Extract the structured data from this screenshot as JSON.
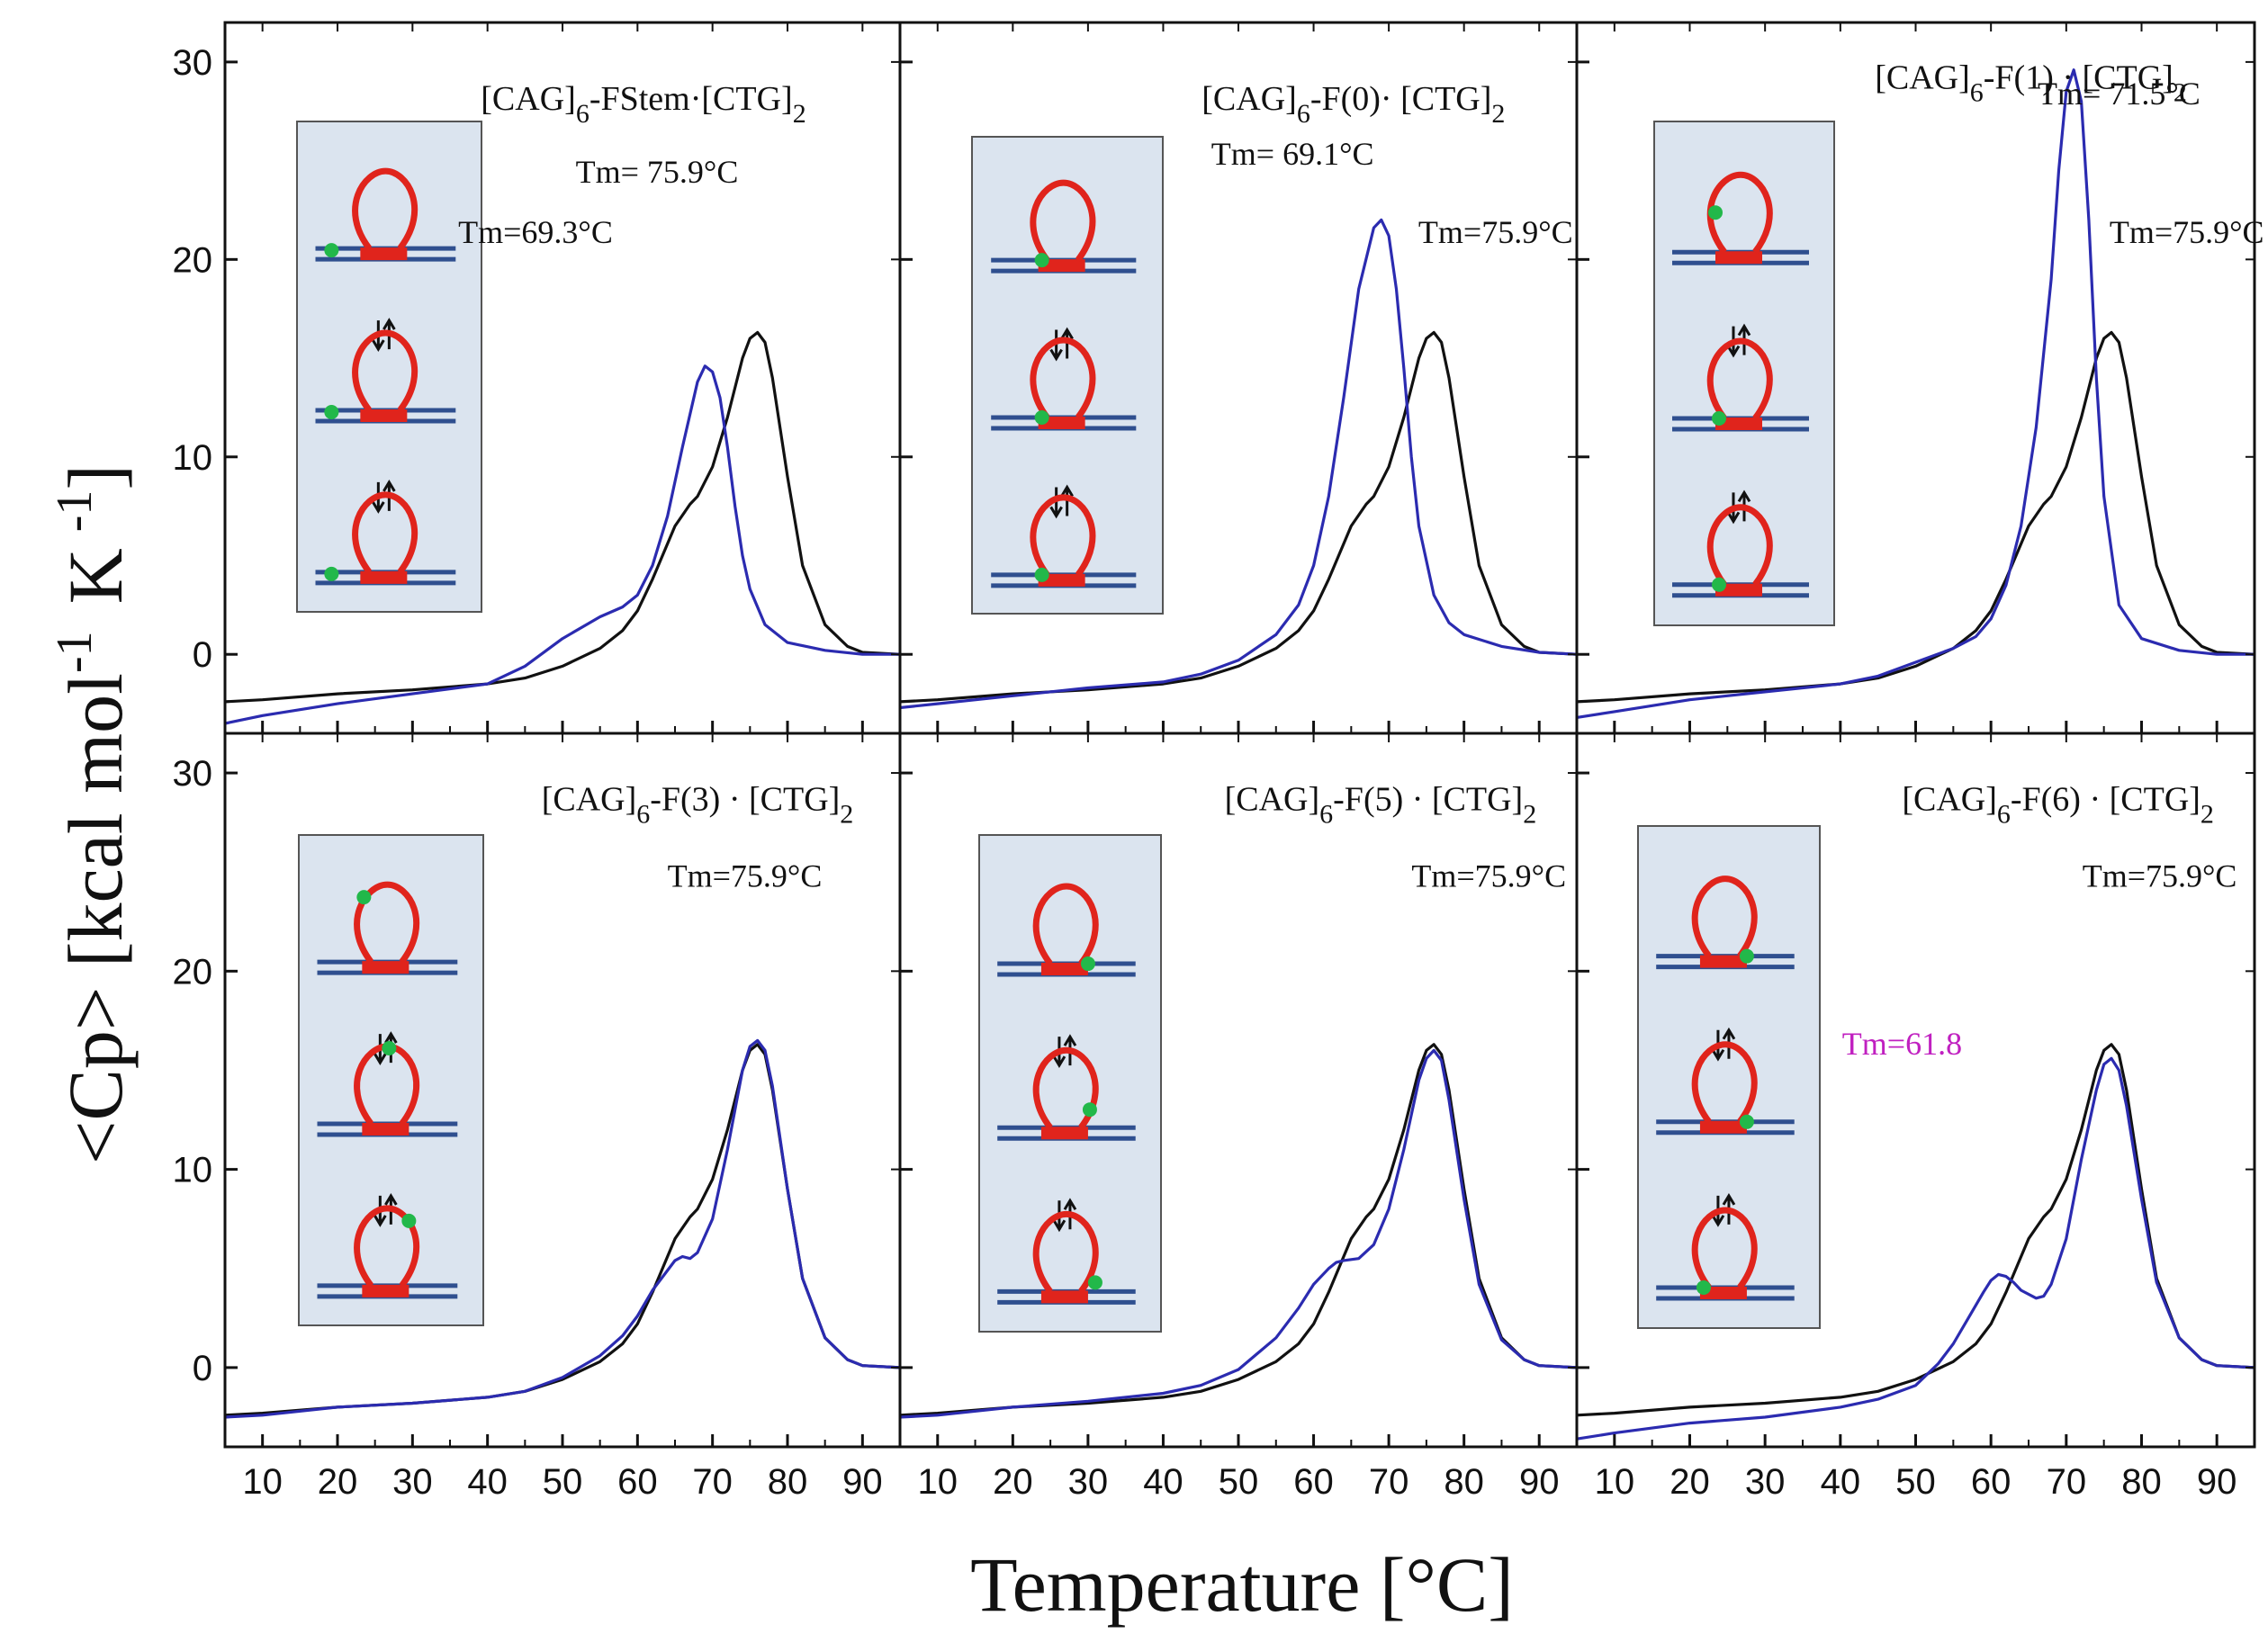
{
  "figure": {
    "ylabel": "<Cp>  [kcal mol ⁻¹  K ⁻¹]",
    "ylabel_parts": {
      "main": "<Cp>  [kcal mol",
      "sup1": "-1",
      "mid": "K",
      "sup2": "-1",
      "end": "]"
    },
    "xlabel": "Temperature  [°C]",
    "x_ticks": [
      10,
      20,
      30,
      40,
      50,
      60,
      70,
      80,
      90
    ],
    "x_tick_labels": [
      "10",
      "20",
      "30",
      "40",
      "50",
      "60",
      "70",
      "80",
      "90"
    ],
    "y_ticks": [
      0,
      10,
      20,
      30
    ],
    "y_tick_labels": [
      "0",
      "10",
      "20",
      "30"
    ],
    "colors": {
      "reference": "#111111",
      "variant": "#2b2bb0",
      "loop": "#e0241c",
      "stem": "#2f4f8f",
      "marker": "#22b84a",
      "inset_bg": "#dbe4ef",
      "tm_magenta": "#c020c0"
    }
  },
  "chart_data": [
    {
      "type": "line",
      "panel": "top-left",
      "title_parts": {
        "a": "[CAG]",
        "b": "6",
        "c": "-FStem·[CTG]",
        "d": "2"
      },
      "xlim": [
        5,
        95
      ],
      "ylim": [
        -4,
        32
      ],
      "annotations": [
        {
          "text": "Tm= 75.9°C",
          "color": "reference"
        },
        {
          "text": "Tm=69.3°C",
          "color": "reference"
        }
      ],
      "series": [
        {
          "role": "reference",
          "x": [
            5,
            10,
            20,
            30,
            40,
            45,
            50,
            55,
            58,
            60,
            62,
            65,
            67,
            68,
            70,
            72,
            74,
            75,
            76,
            77,
            78,
            80,
            82,
            85,
            88,
            90,
            95
          ],
          "y": [
            -2.4,
            -2.3,
            -2.0,
            -1.8,
            -1.5,
            -1.2,
            -0.6,
            0.3,
            1.2,
            2.2,
            3.8,
            6.5,
            7.6,
            8.0,
            9.5,
            12.0,
            15.0,
            16.0,
            16.3,
            15.8,
            14.0,
            9.0,
            4.5,
            1.5,
            0.4,
            0.1,
            0.0
          ]
        },
        {
          "role": "variant",
          "x": [
            5,
            10,
            20,
            30,
            40,
            45,
            50,
            55,
            58,
            60,
            62,
            64,
            66,
            68,
            69,
            70,
            71,
            72,
            73,
            74,
            75,
            77,
            80,
            85,
            90,
            95
          ],
          "y": [
            -3.5,
            -3.1,
            -2.5,
            -2.0,
            -1.5,
            -0.6,
            0.8,
            1.9,
            2.4,
            3.0,
            4.5,
            7.0,
            10.5,
            13.8,
            14.6,
            14.3,
            13.0,
            10.5,
            7.5,
            5.0,
            3.3,
            1.5,
            0.6,
            0.2,
            0.0,
            0.0
          ]
        }
      ],
      "inset_marker_positions": [
        "stem-left",
        "stem-left",
        "stem-left"
      ]
    },
    {
      "type": "line",
      "panel": "top-middle",
      "title_parts": {
        "a": "[CAG]",
        "b": "6",
        "c": "-F(0)· [CTG]",
        "d": "2"
      },
      "xlim": [
        5,
        95
      ],
      "ylim": [
        -4,
        32
      ],
      "annotations": [
        {
          "text": "Tm= 69.1°C",
          "color": "reference"
        },
        {
          "text": "Tm=75.9°C",
          "color": "reference"
        }
      ],
      "series": [
        {
          "role": "reference",
          "x": [
            5,
            10,
            20,
            30,
            40,
            45,
            50,
            55,
            58,
            60,
            62,
            65,
            67,
            68,
            70,
            72,
            74,
            75,
            76,
            77,
            78,
            80,
            82,
            85,
            88,
            90,
            95
          ],
          "y": [
            -2.4,
            -2.3,
            -2.0,
            -1.8,
            -1.5,
            -1.2,
            -0.6,
            0.3,
            1.2,
            2.2,
            3.8,
            6.5,
            7.6,
            8.0,
            9.5,
            12.0,
            15.0,
            16.0,
            16.3,
            15.8,
            14.0,
            9.0,
            4.5,
            1.5,
            0.4,
            0.1,
            0.0
          ]
        },
        {
          "role": "variant",
          "x": [
            5,
            10,
            20,
            30,
            40,
            45,
            50,
            55,
            58,
            60,
            62,
            64,
            66,
            68,
            69,
            70,
            71,
            72,
            73,
            74,
            76,
            78,
            80,
            85,
            90,
            95
          ],
          "y": [
            -2.7,
            -2.5,
            -2.1,
            -1.7,
            -1.4,
            -1.0,
            -0.3,
            1.0,
            2.5,
            4.5,
            8.0,
            13.0,
            18.5,
            21.6,
            22.0,
            21.2,
            18.5,
            14.5,
            10.0,
            6.5,
            3.0,
            1.6,
            1.0,
            0.4,
            0.1,
            0.0
          ]
        }
      ],
      "inset_marker_positions": [
        "loop-base-left",
        "loop-base-left",
        "loop-base-left"
      ]
    },
    {
      "type": "line",
      "panel": "top-right",
      "title_parts": {
        "a": "[CAG]",
        "b": "6",
        "c": "-F(1) · [CTG]",
        "d": "2"
      },
      "xlim": [
        5,
        95
      ],
      "ylim": [
        -4,
        32
      ],
      "annotations": [
        {
          "text": "Tm= 71.5°C",
          "color": "reference"
        },
        {
          "text": "Tm=75.9°C",
          "color": "reference"
        }
      ],
      "series": [
        {
          "role": "reference",
          "x": [
            5,
            10,
            20,
            30,
            40,
            45,
            50,
            55,
            58,
            60,
            62,
            65,
            67,
            68,
            70,
            72,
            74,
            75,
            76,
            77,
            78,
            80,
            82,
            85,
            88,
            90,
            95
          ],
          "y": [
            -2.4,
            -2.3,
            -2.0,
            -1.8,
            -1.5,
            -1.2,
            -0.6,
            0.3,
            1.2,
            2.2,
            3.8,
            6.5,
            7.6,
            8.0,
            9.5,
            12.0,
            15.0,
            16.0,
            16.3,
            15.8,
            14.0,
            9.0,
            4.5,
            1.5,
            0.4,
            0.1,
            0.0
          ]
        },
        {
          "role": "variant",
          "x": [
            5,
            10,
            20,
            30,
            40,
            45,
            50,
            55,
            58,
            60,
            62,
            64,
            66,
            68,
            69,
            70,
            71,
            72,
            73,
            74,
            75,
            77,
            80,
            85,
            90,
            95
          ],
          "y": [
            -3.2,
            -2.9,
            -2.3,
            -1.9,
            -1.5,
            -1.1,
            -0.4,
            0.3,
            0.9,
            1.8,
            3.5,
            6.5,
            11.5,
            19.0,
            24.5,
            28.5,
            29.6,
            28.0,
            22.0,
            14.0,
            8.0,
            2.5,
            0.8,
            0.2,
            0.0,
            0.0
          ]
        }
      ],
      "inset_marker_positions": [
        "loop-left",
        "loop-base-left",
        "loop-base-left"
      ]
    },
    {
      "type": "line",
      "panel": "bottom-left",
      "title_parts": {
        "a": "[CAG]",
        "b": "6",
        "c": "-F(3) · [CTG]",
        "d": "2"
      },
      "xlim": [
        5,
        95
      ],
      "ylim": [
        -4,
        32
      ],
      "annotations": [
        {
          "text": "Tm=75.9°C",
          "color": "reference"
        }
      ],
      "series": [
        {
          "role": "reference",
          "x": [
            5,
            10,
            20,
            30,
            40,
            45,
            50,
            55,
            58,
            60,
            62,
            65,
            67,
            68,
            70,
            72,
            74,
            75,
            76,
            77,
            78,
            80,
            82,
            85,
            88,
            90,
            95
          ],
          "y": [
            -2.4,
            -2.3,
            -2.0,
            -1.8,
            -1.5,
            -1.2,
            -0.6,
            0.3,
            1.2,
            2.2,
            3.8,
            6.5,
            7.6,
            8.0,
            9.5,
            12.0,
            15.0,
            16.0,
            16.3,
            15.8,
            14.0,
            9.0,
            4.5,
            1.5,
            0.4,
            0.1,
            0.0
          ]
        },
        {
          "role": "variant",
          "x": [
            5,
            10,
            20,
            30,
            40,
            45,
            50,
            55,
            58,
            60,
            62,
            65,
            66,
            67,
            68,
            70,
            72,
            74,
            75,
            76,
            77,
            78,
            80,
            82,
            85,
            88,
            90,
            95
          ],
          "y": [
            -2.5,
            -2.4,
            -2.0,
            -1.8,
            -1.5,
            -1.2,
            -0.5,
            0.6,
            1.6,
            2.6,
            3.9,
            5.4,
            5.6,
            5.5,
            5.8,
            7.5,
            11.0,
            15.0,
            16.2,
            16.5,
            16.0,
            14.2,
            9.0,
            4.5,
            1.5,
            0.4,
            0.1,
            0.0
          ]
        }
      ],
      "inset_marker_positions": [
        "loop-top-left",
        "loop-top",
        "loop-top-right"
      ]
    },
    {
      "type": "line",
      "panel": "bottom-middle",
      "title_parts": {
        "a": "[CAG]",
        "b": "6",
        "c": "-F(5) · [CTG]",
        "d": "2"
      },
      "xlim": [
        5,
        95
      ],
      "ylim": [
        -4,
        32
      ],
      "annotations": [
        {
          "text": "Tm=75.9°C",
          "color": "reference"
        }
      ],
      "series": [
        {
          "role": "reference",
          "x": [
            5,
            10,
            20,
            30,
            40,
            45,
            50,
            55,
            58,
            60,
            62,
            65,
            67,
            68,
            70,
            72,
            74,
            75,
            76,
            77,
            78,
            80,
            82,
            85,
            88,
            90,
            95
          ],
          "y": [
            -2.4,
            -2.3,
            -2.0,
            -1.8,
            -1.5,
            -1.2,
            -0.6,
            0.3,
            1.2,
            2.2,
            3.8,
            6.5,
            7.6,
            8.0,
            9.5,
            12.0,
            15.0,
            16.0,
            16.3,
            15.8,
            14.0,
            9.0,
            4.5,
            1.5,
            0.4,
            0.1,
            0.0
          ]
        },
        {
          "role": "variant",
          "x": [
            5,
            10,
            20,
            30,
            40,
            45,
            50,
            55,
            58,
            60,
            62,
            63,
            64,
            66,
            68,
            70,
            72,
            74,
            75,
            76,
            77,
            78,
            80,
            82,
            85,
            88,
            90,
            95
          ],
          "y": [
            -2.5,
            -2.4,
            -2.0,
            -1.7,
            -1.3,
            -0.9,
            -0.1,
            1.5,
            3.0,
            4.2,
            5.0,
            5.3,
            5.4,
            5.5,
            6.2,
            8.0,
            11.0,
            14.5,
            15.6,
            16.0,
            15.5,
            13.5,
            8.5,
            4.2,
            1.4,
            0.4,
            0.1,
            0.0
          ]
        }
      ],
      "inset_marker_positions": [
        "loop-base-right",
        "loop-right",
        "loop-right-low"
      ]
    },
    {
      "type": "line",
      "panel": "bottom-right",
      "title_parts": {
        "a": "[CAG]",
        "b": "6",
        "c": "-F(6) · [CTG]",
        "d": "2"
      },
      "xlim": [
        5,
        95
      ],
      "ylim": [
        -4,
        32
      ],
      "annotations": [
        {
          "text": "Tm=75.9°C",
          "color": "reference"
        },
        {
          "text": "Tm=61.8",
          "color": "tm_magenta"
        }
      ],
      "series": [
        {
          "role": "reference",
          "x": [
            5,
            10,
            20,
            30,
            40,
            45,
            50,
            55,
            58,
            60,
            62,
            65,
            67,
            68,
            70,
            72,
            74,
            75,
            76,
            77,
            78,
            80,
            82,
            85,
            88,
            90,
            95
          ],
          "y": [
            -2.4,
            -2.3,
            -2.0,
            -1.8,
            -1.5,
            -1.2,
            -0.6,
            0.3,
            1.2,
            2.2,
            3.8,
            6.5,
            7.6,
            8.0,
            9.5,
            12.0,
            15.0,
            16.0,
            16.3,
            15.8,
            14.0,
            9.0,
            4.5,
            1.5,
            0.4,
            0.1,
            0.0
          ]
        },
        {
          "role": "variant",
          "x": [
            5,
            10,
            20,
            30,
            40,
            45,
            50,
            53,
            55,
            57,
            59,
            60,
            61,
            62,
            63,
            64,
            66,
            67,
            68,
            70,
            72,
            74,
            75,
            76,
            77,
            78,
            80,
            82,
            85,
            88,
            90,
            95
          ],
          "y": [
            -3.6,
            -3.3,
            -2.8,
            -2.5,
            -2.0,
            -1.6,
            -0.9,
            0.2,
            1.2,
            2.5,
            3.8,
            4.4,
            4.7,
            4.6,
            4.3,
            3.9,
            3.5,
            3.6,
            4.2,
            6.5,
            10.5,
            14.0,
            15.3,
            15.6,
            15.0,
            13.2,
            8.5,
            4.3,
            1.5,
            0.4,
            0.1,
            0.0
          ]
        }
      ],
      "inset_marker_positions": [
        "loop-base-right",
        "loop-base-right",
        "loop-base-left"
      ]
    }
  ]
}
